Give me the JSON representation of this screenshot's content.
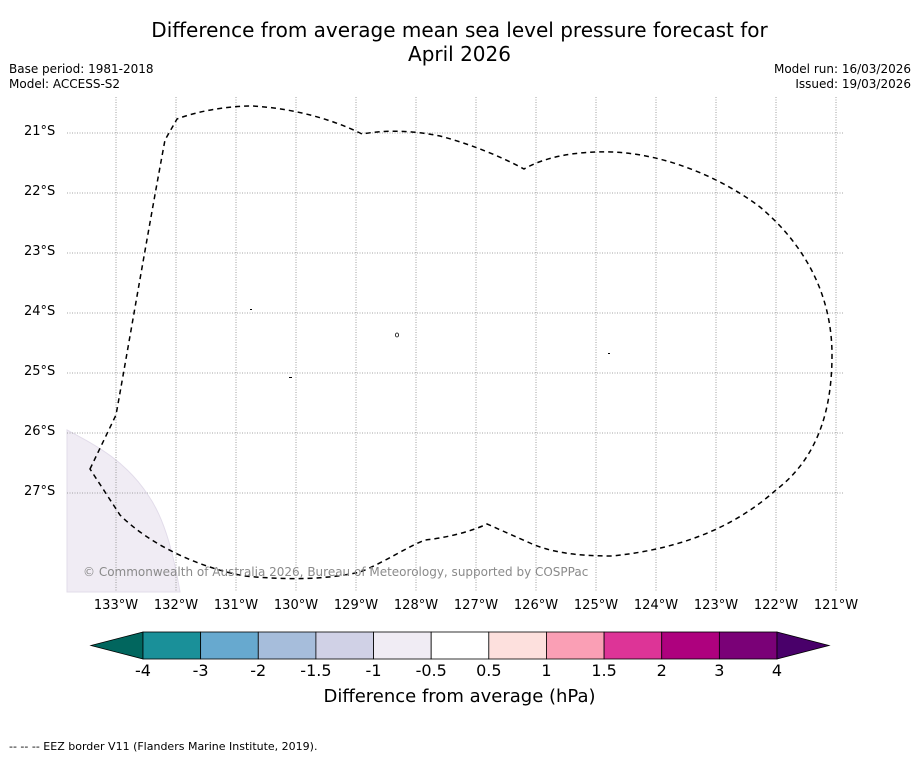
{
  "title_line1": "Difference from average mean sea level pressure forecast for",
  "title_line2": "April 2026",
  "base_period": "Base period: 1981-2018",
  "model": "Model: ACCESS-S2",
  "model_run": "Model run: 16/03/2026",
  "issued": "Issued: 19/03/2026",
  "lat_labels": [
    "21°S",
    "22°S",
    "23°S",
    "24°S",
    "25°S",
    "26°S",
    "27°S"
  ],
  "lon_labels": [
    "133°W",
    "132°W",
    "131°W",
    "130°W",
    "129°W",
    "128°W",
    "127°W",
    "126°W",
    "125°W",
    "124°W",
    "123°W",
    "122°W",
    "121°W"
  ],
  "copyright": "© Commonwealth of Australia 2026, Bureau of Meteorology, supported by COSPPac",
  "colorbar": {
    "ticks": [
      "-4",
      "-3",
      "-2",
      "-1.5",
      "-1",
      "-0.5",
      "0.5",
      "1",
      "1.5",
      "2",
      "3",
      "4"
    ],
    "colors": [
      "#1a9099",
      "#67a9cf",
      "#a6bddb",
      "#d0d1e6",
      "#f0ecf4",
      "#ffffff",
      "#fde0dd",
      "#fa9fb5",
      "#dd3497",
      "#ae017e",
      "#7a0177"
    ],
    "low_extend_color": "#01665e",
    "high_extend_color": "#49006a",
    "label": "Difference from average (hPa)"
  },
  "footer": "--  --  -- EEZ border V11 (Flanders Marine Institute, 2019)."
}
